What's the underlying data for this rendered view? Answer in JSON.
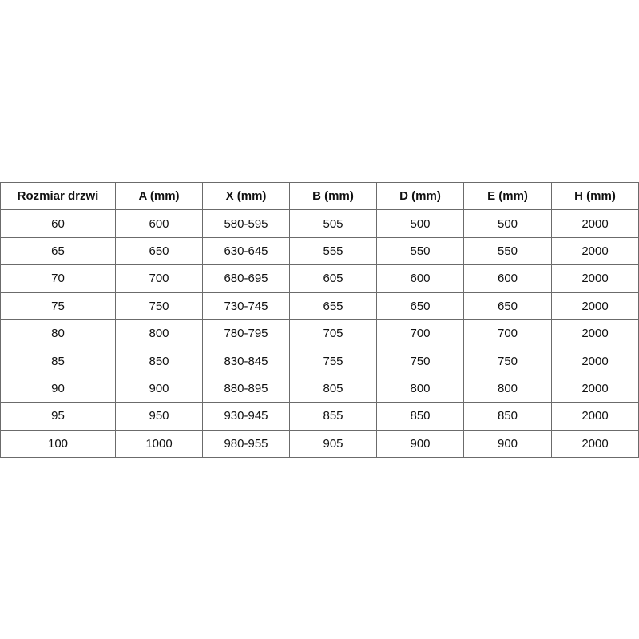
{
  "table": {
    "headers": [
      "Rozmiar drzwi",
      "A (mm)",
      "X (mm)",
      "B (mm)",
      "D (mm)",
      "E (mm)",
      "H (mm)"
    ],
    "rows": [
      [
        "60",
        "600",
        "580-595",
        "505",
        "500",
        "500",
        "2000"
      ],
      [
        "65",
        "650",
        "630-645",
        "555",
        "550",
        "550",
        "2000"
      ],
      [
        "70",
        "700",
        "680-695",
        "605",
        "600",
        "600",
        "2000"
      ],
      [
        "75",
        "750",
        "730-745",
        "655",
        "650",
        "650",
        "2000"
      ],
      [
        "80",
        "800",
        "780-795",
        "705",
        "700",
        "700",
        "2000"
      ],
      [
        "85",
        "850",
        "830-845",
        "755",
        "750",
        "750",
        "2000"
      ],
      [
        "90",
        "900",
        "880-895",
        "805",
        "800",
        "800",
        "2000"
      ],
      [
        "95",
        "950",
        "930-945",
        "855",
        "850",
        "850",
        "2000"
      ],
      [
        "100",
        "1000",
        "980-955",
        "905",
        "900",
        "900",
        "2000"
      ]
    ]
  }
}
